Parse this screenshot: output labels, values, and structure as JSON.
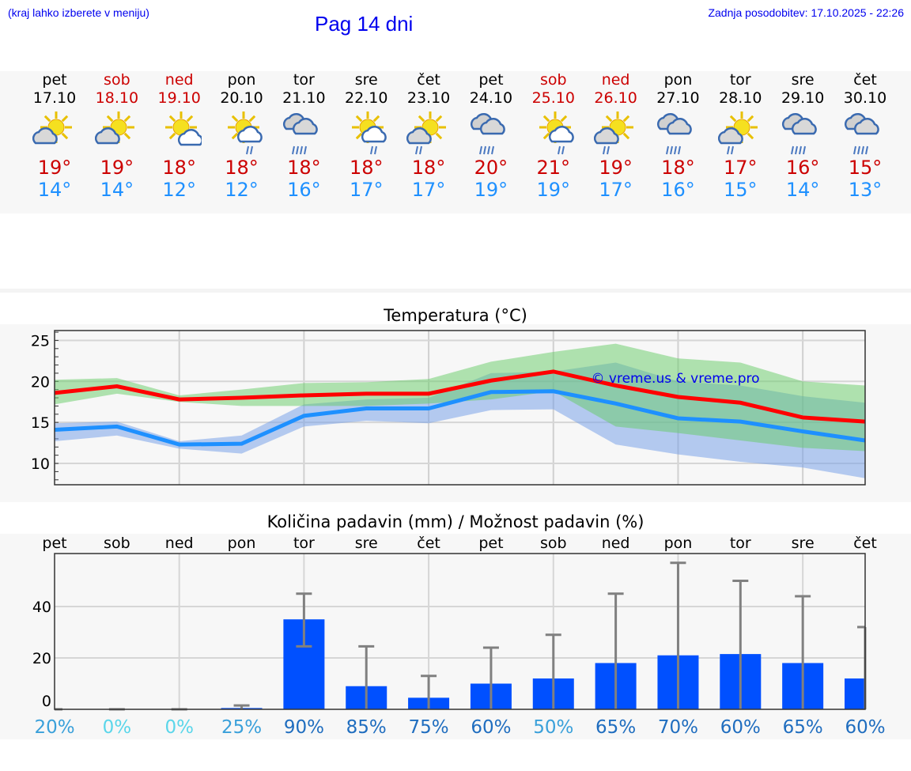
{
  "header": {
    "hint": "(kraj lahko izberete v meniju)",
    "title": "Pag 14 dni",
    "updated": "Zadnja posodobitev: 17.10.2025 - 22:26"
  },
  "days": [
    {
      "name": "pet",
      "date": "17.10",
      "weekend": false,
      "icon": "sun-cloud",
      "max": "19°",
      "min": "14°"
    },
    {
      "name": "sob",
      "date": "18.10",
      "weekend": true,
      "icon": "sun-cloud",
      "max": "19°",
      "min": "14°"
    },
    {
      "name": "ned",
      "date": "19.10",
      "weekend": true,
      "icon": "sun-small-cloud",
      "max": "18°",
      "min": "12°"
    },
    {
      "name": "pon",
      "date": "20.10",
      "weekend": false,
      "icon": "sun-cloud-rain",
      "max": "18°",
      "min": "12°"
    },
    {
      "name": "tor",
      "date": "21.10",
      "weekend": false,
      "icon": "cloud-heavy-rain",
      "max": "18°",
      "min": "16°"
    },
    {
      "name": "sre",
      "date": "22.10",
      "weekend": false,
      "icon": "sun-cloud-rain",
      "max": "18°",
      "min": "17°"
    },
    {
      "name": "čet",
      "date": "23.10",
      "weekend": false,
      "icon": "sun-grey-cloud-rain",
      "max": "18°",
      "min": "17°"
    },
    {
      "name": "pet",
      "date": "24.10",
      "weekend": false,
      "icon": "cloud-heavy-rain",
      "max": "20°",
      "min": "19°"
    },
    {
      "name": "sob",
      "date": "25.10",
      "weekend": true,
      "icon": "sun-cloud-rain",
      "max": "21°",
      "min": "19°"
    },
    {
      "name": "ned",
      "date": "26.10",
      "weekend": true,
      "icon": "sun-grey-cloud-rain",
      "max": "19°",
      "min": "17°"
    },
    {
      "name": "pon",
      "date": "27.10",
      "weekend": false,
      "icon": "cloud-heavy-rain",
      "max": "18°",
      "min": "16°"
    },
    {
      "name": "tor",
      "date": "28.10",
      "weekend": false,
      "icon": "sun-grey-cloud-rain",
      "max": "17°",
      "min": "15°"
    },
    {
      "name": "sre",
      "date": "29.10",
      "weekend": false,
      "icon": "cloud-heavy-rain",
      "max": "16°",
      "min": "14°"
    },
    {
      "name": "čet",
      "date": "30.10",
      "weekend": false,
      "icon": "cloud-heavy-rain",
      "max": "15°",
      "min": "13°"
    }
  ],
  "colors": {
    "max": "#ff0000",
    "min": "#1e90ff",
    "max_band": "#66cc66",
    "min_band": "#6f9be8",
    "bar": "#0050ff",
    "err": "#808080"
  },
  "chart_data": [
    {
      "type": "line",
      "title": "Temperatura (°C)",
      "watermark": "© vreme.us & vreme.pro",
      "ylim": [
        7.4,
        26.2
      ],
      "yticks": [
        10,
        15,
        20,
        25
      ],
      "grid": true,
      "x": [
        "17.10",
        "18.10",
        "19.10",
        "20.10",
        "21.10",
        "22.10",
        "23.10",
        "24.10",
        "25.10",
        "26.10",
        "27.10",
        "28.10",
        "29.10",
        "30.10"
      ],
      "series": [
        {
          "name": "max",
          "values": [
            18.6,
            19.4,
            17.8,
            18.0,
            18.3,
            18.5,
            18.5,
            20.1,
            21.2,
            19.5,
            18.1,
            17.4,
            15.6,
            15.1
          ],
          "band_upper": [
            20.2,
            20.4,
            18.3,
            19.0,
            19.8,
            19.9,
            20.3,
            22.4,
            23.6,
            24.6,
            22.8,
            22.3,
            20.0,
            19.5
          ],
          "band_lower": [
            17.2,
            18.5,
            17.5,
            17.0,
            17.0,
            17.0,
            17.3,
            17.8,
            18.8,
            14.5,
            13.7,
            12.8,
            11.9,
            11.5
          ]
        },
        {
          "name": "min",
          "values": [
            14.1,
            14.5,
            12.3,
            12.4,
            15.8,
            16.7,
            16.7,
            18.7,
            18.8,
            17.3,
            15.5,
            15.1,
            13.9,
            12.8
          ],
          "band_upper": [
            14.9,
            15.1,
            12.7,
            13.4,
            17.2,
            17.8,
            18.0,
            21.0,
            21.2,
            22.3,
            20.0,
            19.5,
            18.2,
            17.4
          ],
          "band_lower": [
            12.7,
            13.4,
            11.8,
            11.2,
            14.5,
            15.2,
            14.9,
            16.5,
            16.6,
            12.3,
            11.1,
            10.2,
            9.5,
            8.2
          ]
        }
      ]
    },
    {
      "type": "bar",
      "title": "Količina padavin (mm) / Možnost padavin (%)",
      "ylim": [
        0,
        60.6
      ],
      "yticks": [
        0,
        20,
        40
      ],
      "grid": true,
      "categories": [
        "pet",
        "sob",
        "ned",
        "pon",
        "tor",
        "sre",
        "čet",
        "pet",
        "sob",
        "ned",
        "pon",
        "tor",
        "sre",
        "čet"
      ],
      "values": [
        0,
        0,
        0,
        0.5,
        35,
        9,
        4.5,
        10,
        12,
        18,
        21,
        21.5,
        18,
        12
      ],
      "err_lower": [
        0,
        0,
        0,
        0,
        24.5,
        0,
        0,
        0,
        0,
        0,
        0,
        0,
        0,
        0
      ],
      "err_upper": [
        0,
        0,
        0,
        1.5,
        45,
        24.5,
        13,
        24,
        29,
        45,
        57,
        50,
        44,
        32
      ],
      "probability": [
        "20%",
        "0%",
        "0%",
        "25%",
        "90%",
        "85%",
        "75%",
        "60%",
        "50%",
        "65%",
        "70%",
        "60%",
        "65%",
        "60%"
      ],
      "probability_values": [
        20,
        0,
        0,
        25,
        90,
        85,
        75,
        60,
        50,
        65,
        70,
        60,
        65,
        60
      ]
    }
  ]
}
